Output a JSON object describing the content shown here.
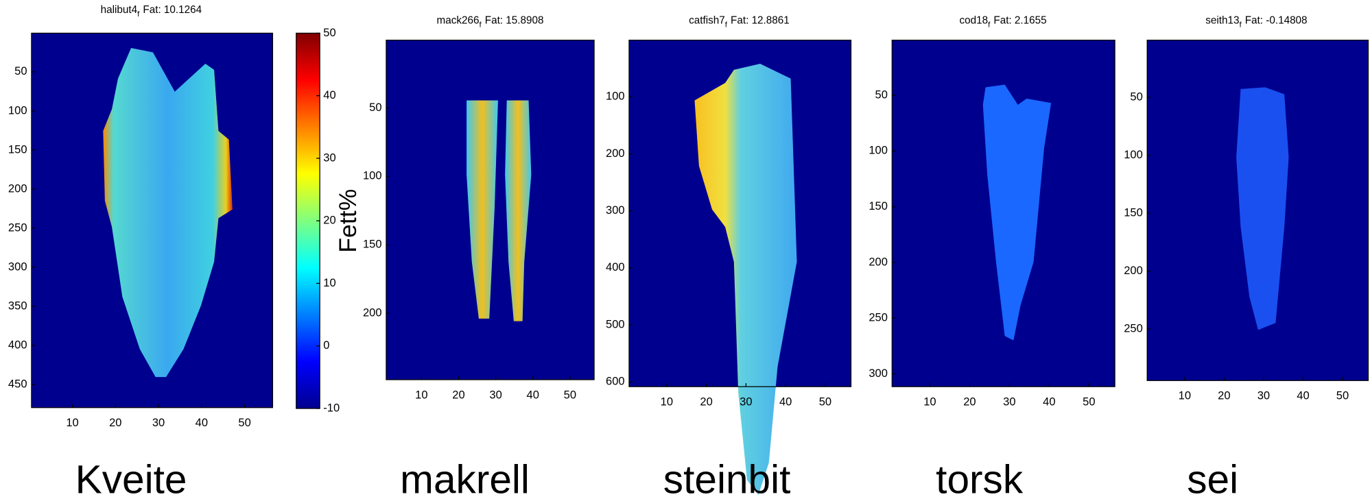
{
  "chart_data": [
    {
      "type": "heatmap",
      "title": "halibut4",
      "title_subscript": "f",
      "title_tail": "Fat: 10.1264",
      "caption": "Kveite",
      "xlim": [
        0.5,
        56.5
      ],
      "ylim": [
        0.5,
        479.5
      ],
      "xticks": [
        10,
        20,
        30,
        40,
        50
      ],
      "yticks": [
        50,
        100,
        150,
        200,
        250,
        300,
        350,
        400,
        450
      ],
      "colorbar": {
        "label": "Fett%",
        "lim": [
          -10,
          50
        ],
        "ticks": [
          -10,
          0,
          10,
          20,
          30,
          40,
          50
        ]
      }
    },
    {
      "type": "heatmap",
      "title": "mack266",
      "title_subscript": "f",
      "title_tail": "Fat: 15.8908",
      "caption": "makrell",
      "xlim": [
        0.5,
        56.5
      ],
      "ylim": [
        0.5,
        248.5
      ],
      "xticks": [
        10,
        20,
        30,
        40,
        50
      ],
      "yticks": [
        50,
        100,
        150,
        200
      ]
    },
    {
      "type": "heatmap",
      "title": "catfish7",
      "title_subscript": "f",
      "title_tail": "Fat: 12.8861",
      "caption": "steinbit",
      "xlim": [
        0.5,
        56.5
      ],
      "ylim": [
        0.5,
        608.5
      ],
      "xticks": [
        10,
        20,
        30,
        40,
        50
      ],
      "yticks": [
        100,
        200,
        300,
        400,
        500,
        600
      ]
    },
    {
      "type": "heatmap",
      "title": "cod18",
      "title_subscript": "f",
      "title_tail": "Fat: 2.1655",
      "caption": "torsk",
      "xlim": [
        0.5,
        56.5
      ],
      "ylim": [
        0.5,
        311.5
      ],
      "xticks": [
        10,
        20,
        30,
        40,
        50
      ],
      "yticks": [
        50,
        100,
        150,
        200,
        250,
        300
      ]
    },
    {
      "type": "heatmap",
      "title": "seith13",
      "title_subscript": "f",
      "title_tail": "Fat: -0.14808",
      "caption": "sei",
      "xlim": [
        0.5,
        56.5
      ],
      "ylim": [
        0.5,
        294.5
      ],
      "xticks": [
        10,
        20,
        30,
        40,
        50
      ],
      "yticks": [
        50,
        100,
        150,
        200,
        250
      ]
    }
  ]
}
